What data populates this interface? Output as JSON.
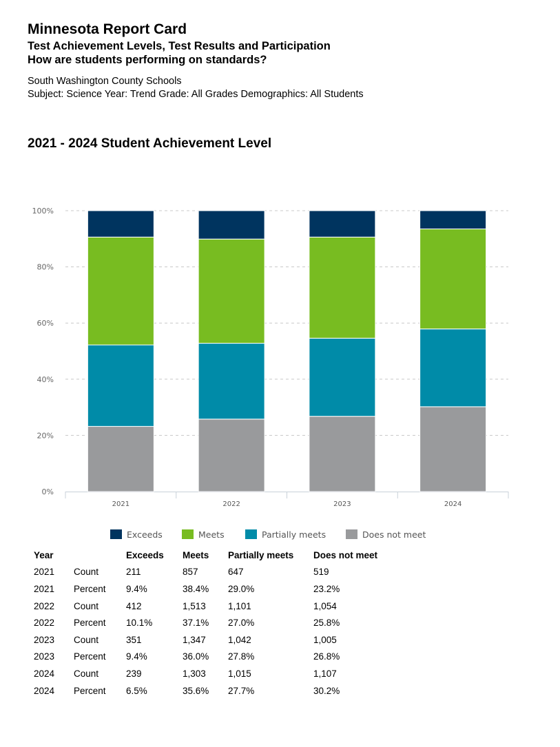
{
  "header": {
    "title": "Minnesota Report Card",
    "subtitle1": "Test Achievement Levels, Test Results and Participation",
    "subtitle2": "How are students performing on standards?",
    "district": "South Washington County Schools",
    "filters": "Subject: Science Year: Trend Grade: All Grades Demographics: All Students"
  },
  "chart_data": {
    "type": "bar",
    "stacked": true,
    "title": "2021 - 2024 Student Achievement Level",
    "categories": [
      "2021",
      "2022",
      "2023",
      "2024"
    ],
    "yticks": [
      "0%",
      "20%",
      "40%",
      "60%",
      "80%",
      "100%"
    ],
    "ylim": [
      0,
      100
    ],
    "grid": true,
    "legend_position": "bottom",
    "series": [
      {
        "name": "Does not meet",
        "color": "#999a9c",
        "values": [
          23.2,
          25.8,
          26.8,
          30.2
        ]
      },
      {
        "name": "Partially meets",
        "color": "#008ba8",
        "values": [
          29.0,
          27.0,
          27.8,
          27.7
        ]
      },
      {
        "name": "Meets",
        "color": "#78bc21",
        "values": [
          38.4,
          37.1,
          36.0,
          35.6
        ]
      },
      {
        "name": "Exceeds",
        "color": "#00345f",
        "values": [
          9.4,
          10.1,
          9.4,
          6.5
        ]
      }
    ],
    "legend_order": [
      "Exceeds",
      "Meets",
      "Partially meets",
      "Does not meet"
    ]
  },
  "table": {
    "headers": [
      "Year",
      "",
      "Exceeds",
      "Meets",
      "Partially meets",
      "Does not meet"
    ],
    "rows": [
      [
        "2021",
        "Count",
        "211",
        "857",
        "647",
        "519"
      ],
      [
        "2021",
        "Percent",
        "9.4%",
        "38.4%",
        "29.0%",
        "23.2%"
      ],
      [
        "2022",
        "Count",
        "412",
        "1,513",
        "1,101",
        "1,054"
      ],
      [
        "2022",
        "Percent",
        "10.1%",
        "37.1%",
        "27.0%",
        "25.8%"
      ],
      [
        "2023",
        "Count",
        "351",
        "1,347",
        "1,042",
        "1,005"
      ],
      [
        "2023",
        "Percent",
        "9.4%",
        "36.0%",
        "27.8%",
        "26.8%"
      ],
      [
        "2024",
        "Count",
        "239",
        "1,303",
        "1,015",
        "1,107"
      ],
      [
        "2024",
        "Percent",
        "6.5%",
        "35.6%",
        "27.7%",
        "30.2%"
      ]
    ]
  }
}
